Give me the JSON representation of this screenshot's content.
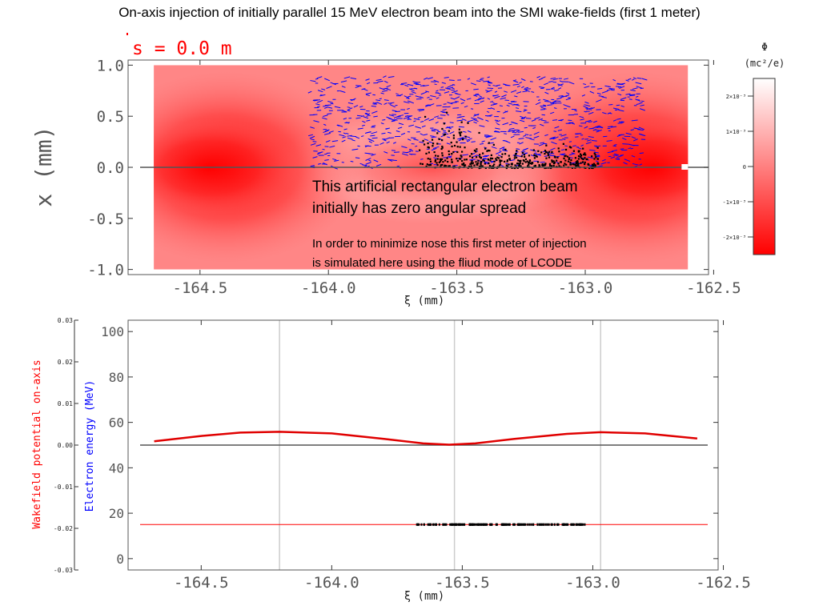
{
  "title": "On-axis injection of initially parallel 15 MeV electron beam into the SMI wake-fields (first 1 meter)",
  "colors": {
    "field_red": "#ff0000",
    "field_light": "#ffffff",
    "beam_marks": "#000000",
    "velocity_marks": "#0000ff",
    "energy_axis_label": "#0000ff",
    "potential_axis_label": "#ff0000",
    "potential_curve": "#e00000",
    "axis_line": "#555555",
    "grid": "#cccccc"
  },
  "chart_data": [
    {
      "type": "heatmap",
      "annotation_s": "s = 0.0 m",
      "xlabel": "ξ (mm)",
      "ylabel": "x (mm)",
      "xlim": [
        -164.78,
        -162.52
      ],
      "ylim": [
        -1.05,
        1.05
      ],
      "x_ticks": [
        -164.5,
        -164.0,
        -163.5,
        -163.0,
        -162.5
      ],
      "x_tick_labels": [
        "-164.5",
        "-164.0",
        "-163.5",
        "-163.0",
        "-162.5"
      ],
      "y_ticks": [
        1.0,
        0.5,
        0.0,
        -0.5,
        -1.0
      ],
      "y_tick_labels": [
        "1.0",
        "0.5",
        "0.0",
        "-0.5",
        "-1.0"
      ],
      "field_extent": {
        "x": [
          -164.68,
          -162.6
        ],
        "y": [
          -1.0,
          1.0
        ]
      },
      "field_bright_centers_x": [
        -164.4,
        -162.8
      ],
      "beam_box": {
        "x": [
          -164.08,
          -162.78
        ],
        "y": [
          0.0,
          0.88
        ]
      },
      "dense_beam_region": {
        "x": [
          -163.65,
          -162.95
        ],
        "y": [
          0.0,
          0.6
        ]
      },
      "colorbar": {
        "title": "Φ",
        "units": "(mc²/e)",
        "ticks": [
          0.002,
          0.001,
          0.0,
          -0.001,
          -0.002
        ],
        "tick_labels": [
          "2×10⁻³",
          "1×10⁻³",
          "0",
          "-1×10⁻³",
          "-2×10⁻³"
        ]
      },
      "annotations": [
        "This artificial rectangular electron beam",
        "initially has zero angular spread",
        "In order to minimize nose this first meter of injection",
        "is simulated here using the fliud mode of LCODE"
      ]
    },
    {
      "type": "line",
      "xlabel": "ξ (mm)",
      "xlim": [
        -164.78,
        -162.52
      ],
      "x_ticks": [
        -164.5,
        -164.0,
        -163.5,
        -163.0,
        -162.5
      ],
      "x_tick_labels": [
        "-164.5",
        "-164.0",
        "-163.5",
        "-163.0",
        "-162.5"
      ],
      "grid_x": [
        -164.2,
        -163.53,
        -162.97
      ],
      "ylabel": "Electron energy (MeV)",
      "ylim": [
        -5,
        105
      ],
      "y_ticks": [
        0,
        20,
        40,
        60,
        80,
        100
      ],
      "y_tick_labels": [
        "0",
        "20",
        "40",
        "60",
        "80",
        "100"
      ],
      "y2label": "Wakefield potential on-axis",
      "y2lim": [
        -0.03,
        0.03
      ],
      "y2_ticks": [
        0.03,
        0.02,
        0.01,
        0.0,
        -0.01,
        -0.02,
        -0.03
      ],
      "y2_tick_labels": [
        "0.03",
        "0.02",
        "0.01",
        "0.00",
        "-0.01",
        "-0.02",
        "-0.03"
      ],
      "series": [
        {
          "kind": "potential",
          "x": [
            -164.68,
            -164.5,
            -164.35,
            -164.2,
            -164.0,
            -163.8,
            -163.65,
            -163.55,
            -163.45,
            -163.3,
            -163.1,
            -162.97,
            -162.8,
            -162.6
          ],
          "y": [
            0.0009,
            0.0022,
            0.003,
            0.0032,
            0.0028,
            0.0015,
            0.0004,
            0.0001,
            0.0004,
            0.0015,
            0.0027,
            0.0031,
            0.0028,
            0.0016
          ]
        },
        {
          "kind": "beam_energy",
          "x": [
            -163.68,
            -163.6,
            -163.5,
            -163.4,
            -163.3,
            -163.2,
            -163.1,
            -163.03
          ],
          "y": [
            15,
            15,
            15,
            15,
            15,
            15,
            15,
            15
          ]
        }
      ],
      "reference_energy": 15,
      "zero_potential_line": 0.0
    }
  ]
}
